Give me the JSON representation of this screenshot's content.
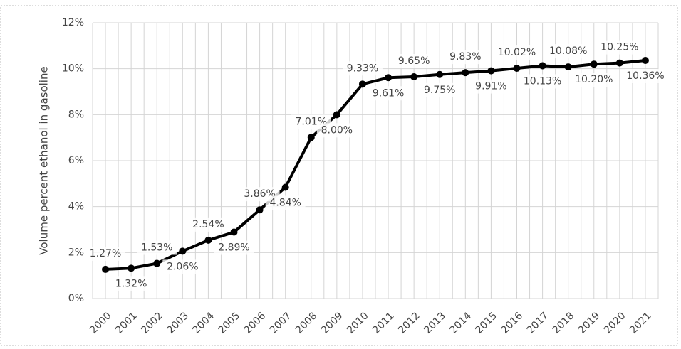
{
  "chart_data": {
    "type": "line",
    "y_label": "Volume percent ethanol in gasoline",
    "categories": [
      "2000",
      "2001",
      "2002",
      "2003",
      "2004",
      "2005",
      "2006",
      "2007",
      "2008",
      "2009",
      "2010",
      "2011",
      "2012",
      "2013",
      "2014",
      "2015",
      "2016",
      "2017",
      "2018",
      "2019",
      "2020",
      "2021"
    ],
    "series": [
      {
        "name": "Ethanol",
        "color": "#000000",
        "values": [
          1.27,
          1.32,
          1.53,
          2.06,
          2.54,
          2.89,
          3.86,
          4.84,
          7.01,
          8.0,
          9.33,
          9.61,
          9.65,
          9.75,
          9.83,
          9.91,
          10.02,
          10.13,
          10.08,
          10.2,
          10.25,
          10.36
        ],
        "value_labels": [
          "1.27%",
          "1.32%",
          "1.53%",
          "2.06%",
          "2.54%",
          "2.89%",
          "3.86%",
          "4.84%",
          "7.01%",
          "8.00%",
          "9.33%",
          "9.61%",
          "9.65%",
          "9.75%",
          "9.83%",
          "9.91%",
          "10.02%",
          "10.13%",
          "10.08%",
          "10.20%",
          "10.25%",
          "10.36%"
        ]
      }
    ],
    "ylim": [
      0,
      12
    ],
    "yticks": [
      {
        "value": 0,
        "label": "0%"
      },
      {
        "value": 2,
        "label": "2%"
      },
      {
        "value": 4,
        "label": "4%"
      },
      {
        "value": 6,
        "label": "6%"
      },
      {
        "value": 8,
        "label": "8%"
      },
      {
        "value": 10,
        "label": "10%"
      },
      {
        "value": 12,
        "label": "12%"
      }
    ],
    "grid": true
  }
}
